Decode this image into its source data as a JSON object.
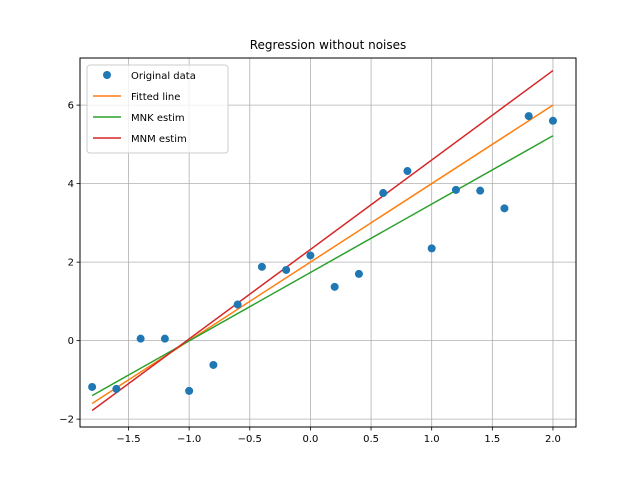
{
  "chart_data": {
    "type": "line",
    "title": "Regression without noises",
    "xlabel": "",
    "ylabel": "",
    "xlim": [
      -1.9,
      2.19
    ],
    "ylim": [
      -2.2,
      7.2
    ],
    "xticks": [
      -1.5,
      -1.0,
      -0.5,
      0.0,
      0.5,
      1.0,
      1.5,
      2.0
    ],
    "xtick_labels": [
      "−1.5",
      "−1.0",
      "−0.5",
      "0.0",
      "0.5",
      "1.0",
      "1.5",
      "2.0"
    ],
    "yticks": [
      -2,
      0,
      2,
      4,
      6
    ],
    "ytick_labels": [
      "−2",
      "0",
      "2",
      "4",
      "6"
    ],
    "grid": true,
    "legend_position": "top-left",
    "scatter": {
      "name": "Original data",
      "color": "#1f77b4",
      "x": [
        -1.8,
        -1.6,
        -1.4,
        -1.2,
        -1.0,
        -0.8,
        -0.6,
        -0.4,
        -0.2,
        0.0,
        0.2,
        0.4,
        0.6,
        0.8,
        1.0,
        1.2,
        1.4,
        1.6,
        1.8,
        2.0
      ],
      "y": [
        -1.18,
        -1.23,
        0.05,
        0.05,
        -1.28,
        -0.62,
        0.92,
        1.88,
        1.8,
        2.17,
        1.37,
        1.7,
        3.76,
        4.32,
        2.35,
        3.84,
        3.82,
        3.37,
        5.72,
        5.6
      ]
    },
    "series": [
      {
        "name": "Fitted line",
        "color": "#ff7f0e",
        "x": [
          -1.8,
          2.0
        ],
        "y": [
          -1.6,
          6.0
        ]
      },
      {
        "name": "MNK estim",
        "color": "#2ca02c",
        "x": [
          -1.8,
          2.0
        ],
        "y": [
          -1.4,
          5.22
        ]
      },
      {
        "name": "MNM estim",
        "color": "#d62728",
        "x": [
          -1.8,
          2.0
        ],
        "y": [
          -1.78,
          6.88
        ]
      }
    ]
  }
}
